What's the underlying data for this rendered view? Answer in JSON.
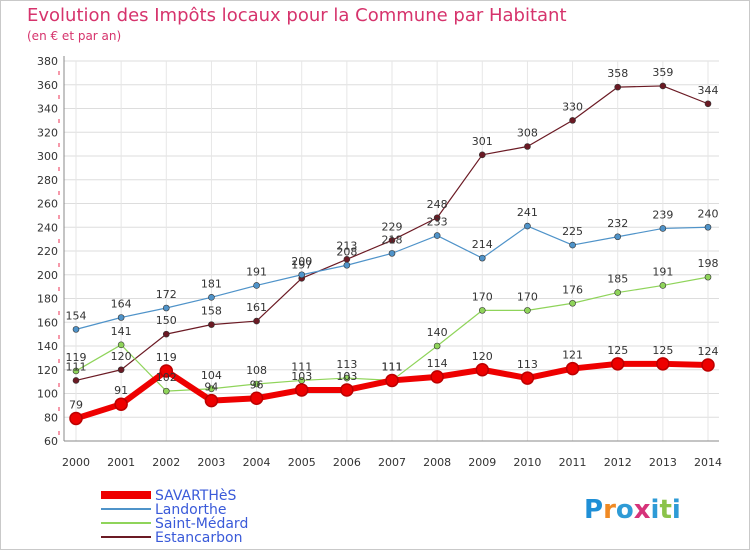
{
  "title": "Evolution des Impôts locaux pour la Commune par Habitant",
  "subtitle": "(en € et par an)",
  "logo_text": "Proxiti",
  "chart_data": {
    "type": "line",
    "x": [
      2000,
      2001,
      2002,
      2003,
      2004,
      2005,
      2006,
      2007,
      2008,
      2009,
      2010,
      2011,
      2012,
      2013,
      2014
    ],
    "ylim": [
      60,
      380
    ],
    "yticks": [
      60,
      80,
      100,
      120,
      140,
      160,
      180,
      200,
      220,
      240,
      260,
      280,
      300,
      320,
      340,
      360,
      380
    ],
    "grid": true,
    "legend_position": "bottom-left",
    "series": [
      {
        "name": "Estancarbon",
        "color": "#6b1a24",
        "values": [
          111,
          120,
          150,
          158,
          161,
          197,
          213,
          229,
          248,
          301,
          308,
          330,
          358,
          359,
          344
        ]
      },
      {
        "name": "Landorthe",
        "color": "#4f93c9",
        "values": [
          154,
          164,
          172,
          181,
          191,
          200,
          208,
          218,
          233,
          214,
          241,
          225,
          232,
          239,
          240
        ]
      },
      {
        "name": "Saint-Médard",
        "color": "#8fd45a",
        "values": [
          119,
          141,
          102,
          104,
          108,
          111,
          113,
          111,
          140,
          170,
          170,
          176,
          185,
          191,
          198
        ]
      },
      {
        "name": "SAVARTHèS",
        "color": "#ee0000",
        "values": [
          79,
          91,
          119,
          94,
          96,
          103,
          103,
          111,
          114,
          120,
          113,
          121,
          125,
          125,
          124
        ]
      }
    ],
    "legend": [
      "SAVARTHèS",
      "Landorthe",
      "Saint-Médard",
      "Estancarbon"
    ]
  }
}
